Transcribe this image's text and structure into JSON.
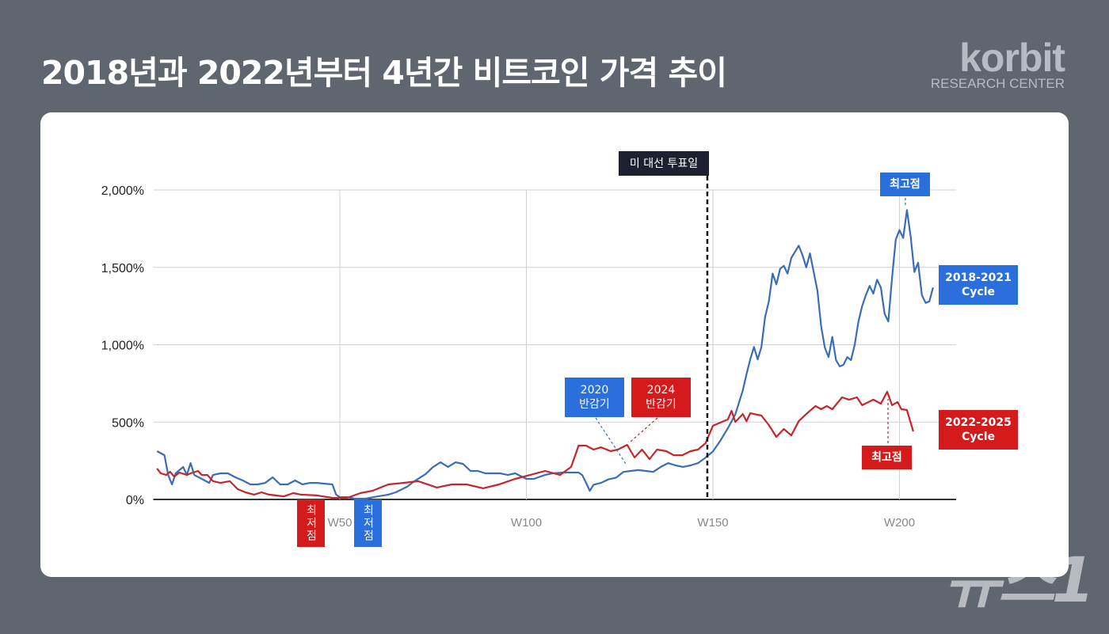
{
  "header": {
    "title": "2018년과 2022년부터 4년간 비트코인 가격 추이"
  },
  "logo": {
    "brand": "korbit",
    "subtitle": "RESEARCH CENTER"
  },
  "watermark": "뉴스1",
  "colors": {
    "background": "#5f6670",
    "blue_line": "#3a6db8",
    "red_line": "#c4262c",
    "blue_box": "#2a6fdb",
    "red_box": "#d41a1a",
    "election_box": "#1d2030"
  },
  "annotations": {
    "election": "미 대선 투표일",
    "halving_2020": "2020\n반감기",
    "halving_2024": "2024\n반감기",
    "blue_low": "최저점",
    "red_low": "최저점",
    "blue_high": "최고점",
    "red_high": "최고점",
    "blue_series_label": "2018-2021\nCycle",
    "red_series_label": "2022-2025\nCycle"
  },
  "chart_data": {
    "type": "line",
    "title": "2018년과 2022년부터 4년간 비트코인 가격 추이",
    "xlabel": "",
    "ylabel": "",
    "xlim": [
      0,
      215
    ],
    "ylim": [
      0,
      2000
    ],
    "x_ticks": [
      {
        "value": 50,
        "label": "W50"
      },
      {
        "value": 100,
        "label": "W100"
      },
      {
        "value": 150,
        "label": "W150"
      },
      {
        "value": 200,
        "label": "W200"
      }
    ],
    "y_ticks": [
      {
        "value": 0,
        "label": "0%"
      },
      {
        "value": 500,
        "label": "500%"
      },
      {
        "value": 1000,
        "label": "1,000%"
      },
      {
        "value": 1500,
        "label": "1,500%"
      },
      {
        "value": 2000,
        "label": "2,000%"
      }
    ],
    "grid": true,
    "election_week": 148.5,
    "series": [
      {
        "name": "2018-2021 Cycle",
        "color": "#3a6db8",
        "points": [
          [
            1,
            312
          ],
          [
            3,
            286
          ],
          [
            4,
            158
          ],
          [
            5,
            97
          ],
          [
            6,
            169
          ],
          [
            8,
            210
          ],
          [
            9,
            158
          ],
          [
            10,
            235
          ],
          [
            11,
            158
          ],
          [
            13,
            133
          ],
          [
            15,
            107
          ],
          [
            16,
            158
          ],
          [
            18,
            169
          ],
          [
            20,
            169
          ],
          [
            22,
            143
          ],
          [
            24,
            123
          ],
          [
            26,
            97
          ],
          [
            28,
            97
          ],
          [
            30,
            107
          ],
          [
            32,
            143
          ],
          [
            34,
            97
          ],
          [
            36,
            97
          ],
          [
            38,
            123
          ],
          [
            40,
            97
          ],
          [
            42,
            107
          ],
          [
            44,
            107
          ],
          [
            46,
            102
          ],
          [
            48,
            97
          ],
          [
            49,
            31
          ],
          [
            50,
            15
          ],
          [
            52,
            15
          ],
          [
            53,
            10
          ],
          [
            54,
            5
          ],
          [
            57,
            5
          ],
          [
            59,
            15
          ],
          [
            63,
            31
          ],
          [
            65,
            46
          ],
          [
            68,
            82
          ],
          [
            70,
            118
          ],
          [
            73,
            164
          ],
          [
            75,
            210
          ],
          [
            77,
            240
          ],
          [
            79,
            210
          ],
          [
            81,
            240
          ],
          [
            83,
            230
          ],
          [
            85,
            184
          ],
          [
            87,
            184
          ],
          [
            89,
            169
          ],
          [
            93,
            169
          ],
          [
            95,
            158
          ],
          [
            97,
            169
          ],
          [
            100,
            133
          ],
          [
            102,
            133
          ],
          [
            105,
            158
          ],
          [
            107,
            169
          ],
          [
            110,
            174
          ],
          [
            114,
            174
          ],
          [
            115,
            157
          ],
          [
            116,
            107
          ],
          [
            117,
            56
          ],
          [
            118,
            95
          ],
          [
            120,
            107
          ],
          [
            122,
            130
          ],
          [
            124,
            140
          ],
          [
            126,
            178
          ],
          [
            128,
            184
          ],
          [
            130,
            190
          ],
          [
            132,
            184
          ],
          [
            134,
            178
          ],
          [
            136,
            210
          ],
          [
            138,
            235
          ],
          [
            140,
            220
          ],
          [
            142,
            210
          ],
          [
            144,
            220
          ],
          [
            146,
            235
          ],
          [
            148,
            270
          ],
          [
            150,
            310
          ],
          [
            152,
            380
          ],
          [
            154,
            460
          ],
          [
            156,
            550
          ],
          [
            158,
            705
          ],
          [
            159,
            810
          ],
          [
            160,
            905
          ],
          [
            161,
            985
          ],
          [
            162,
            905
          ],
          [
            163,
            985
          ],
          [
            164,
            1180
          ],
          [
            165,
            1280
          ],
          [
            166,
            1460
          ],
          [
            167,
            1390
          ],
          [
            168,
            1490
          ],
          [
            169,
            1510
          ],
          [
            170,
            1460
          ],
          [
            171,
            1560
          ],
          [
            172,
            1600
          ],
          [
            173,
            1640
          ],
          [
            174,
            1580
          ],
          [
            175,
            1500
          ],
          [
            176,
            1590
          ],
          [
            178,
            1350
          ],
          [
            179,
            1120
          ],
          [
            180,
            980
          ],
          [
            181,
            920
          ],
          [
            182,
            1050
          ],
          [
            183,
            900
          ],
          [
            184,
            860
          ],
          [
            185,
            870
          ],
          [
            186,
            920
          ],
          [
            187,
            900
          ],
          [
            188,
            1000
          ],
          [
            189,
            1150
          ],
          [
            190,
            1250
          ],
          [
            191,
            1320
          ],
          [
            192,
            1380
          ],
          [
            193,
            1330
          ],
          [
            194,
            1420
          ],
          [
            195,
            1370
          ],
          [
            196,
            1200
          ],
          [
            197,
            1150
          ],
          [
            198,
            1430
          ],
          [
            199,
            1680
          ],
          [
            200,
            1740
          ],
          [
            201,
            1690
          ],
          [
            202,
            1870
          ],
          [
            203,
            1700
          ],
          [
            204,
            1470
          ],
          [
            205,
            1530
          ],
          [
            206,
            1320
          ],
          [
            207,
            1270
          ],
          [
            208,
            1280
          ],
          [
            209,
            1370
          ]
        ]
      },
      {
        "name": "2022-2025 Cycle",
        "color": "#c4262c",
        "points": [
          [
            1,
            200
          ],
          [
            2,
            169
          ],
          [
            3.5,
            158
          ],
          [
            4.5,
            179
          ],
          [
            5.6,
            148
          ],
          [
            7,
            174
          ],
          [
            9,
            158
          ],
          [
            10,
            169
          ],
          [
            12,
            184
          ],
          [
            13,
            158
          ],
          [
            14.5,
            158
          ],
          [
            16,
            118
          ],
          [
            18,
            107
          ],
          [
            20.5,
            118
          ],
          [
            22.6,
            67
          ],
          [
            24.7,
            46
          ],
          [
            27,
            31
          ],
          [
            29,
            46
          ],
          [
            31,
            31
          ],
          [
            35,
            20
          ],
          [
            37.5,
            41
          ],
          [
            39.6,
            31
          ],
          [
            43.8,
            26
          ],
          [
            48,
            10
          ],
          [
            52,
            10
          ],
          [
            55.5,
            41
          ],
          [
            58.7,
            56
          ],
          [
            63,
            97
          ],
          [
            67,
            107
          ],
          [
            71,
            118
          ],
          [
            76,
            77
          ],
          [
            80,
            97
          ],
          [
            84,
            97
          ],
          [
            88.4,
            72
          ],
          [
            92.7,
            97
          ],
          [
            97,
            133
          ],
          [
            101,
            158
          ],
          [
            105,
            184
          ],
          [
            109,
            158
          ],
          [
            112,
            210
          ],
          [
            114,
            348
          ],
          [
            116,
            348
          ],
          [
            118,
            322
          ],
          [
            120,
            337
          ],
          [
            122.6,
            312
          ],
          [
            124.5,
            322
          ],
          [
            127,
            353
          ],
          [
            129,
            271
          ],
          [
            131,
            322
          ],
          [
            133,
            261
          ],
          [
            135,
            322
          ],
          [
            137.5,
            312
          ],
          [
            139.5,
            286
          ],
          [
            141.8,
            286
          ],
          [
            144,
            312
          ],
          [
            146,
            322
          ],
          [
            148,
            363
          ],
          [
            150,
            476
          ],
          [
            154,
            517
          ],
          [
            155,
            573
          ],
          [
            156,
            501
          ],
          [
            158,
            552
          ],
          [
            159,
            506
          ],
          [
            160,
            557
          ],
          [
            163,
            542
          ],
          [
            165,
            481
          ],
          [
            167,
            404
          ],
          [
            169,
            455
          ],
          [
            171,
            414
          ],
          [
            173,
            506
          ],
          [
            175,
            552
          ],
          [
            177.5,
            604
          ],
          [
            179,
            583
          ],
          [
            180.5,
            604
          ],
          [
            182,
            583
          ],
          [
            184.6,
            660
          ],
          [
            186.5,
            645
          ],
          [
            188.6,
            660
          ],
          [
            190,
            609
          ],
          [
            193,
            645
          ],
          [
            195,
            619
          ],
          [
            196.7,
            696
          ],
          [
            198,
            609
          ],
          [
            199.5,
            629
          ],
          [
            200.5,
            583
          ],
          [
            202,
            578
          ],
          [
            203.7,
            440
          ]
        ]
      }
    ]
  }
}
